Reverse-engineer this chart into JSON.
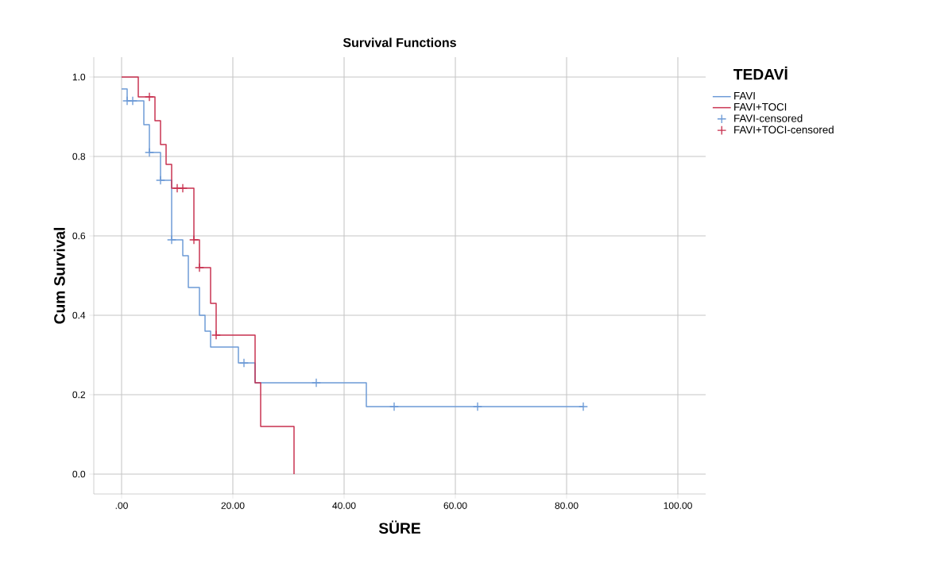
{
  "chart_data": {
    "type": "step",
    "title": "Survival Functions",
    "xlabel": "SÜRE",
    "ylabel": "Cum Survival",
    "legend_title": "TEDAVİ",
    "xlim": [
      -5,
      105
    ],
    "ylim": [
      -0.05,
      1.05
    ],
    "xticks": [
      {
        "value": 0,
        "label": ".00"
      },
      {
        "value": 20,
        "label": "20.00"
      },
      {
        "value": 40,
        "label": "40.00"
      },
      {
        "value": 60,
        "label": "60.00"
      },
      {
        "value": 80,
        "label": "80.00"
      },
      {
        "value": 100,
        "label": "100.00"
      }
    ],
    "yticks": [
      {
        "value": 0,
        "label": "0.0"
      },
      {
        "value": 0.2,
        "label": "0.2"
      },
      {
        "value": 0.4,
        "label": "0.4"
      },
      {
        "value": 0.6,
        "label": "0.6"
      },
      {
        "value": 0.8,
        "label": "0.8"
      },
      {
        "value": 1.0,
        "label": "1.0"
      }
    ],
    "grid": true,
    "legend": "top right",
    "series": [
      {
        "name": "FAVI",
        "color": "#6c9ad6",
        "x": [
          0,
          1,
          4,
          5,
          7,
          9,
          11,
          12,
          14,
          15,
          16,
          21,
          24,
          44,
          83
        ],
        "values": [
          0.97,
          0.94,
          0.88,
          0.81,
          0.74,
          0.59,
          0.55,
          0.47,
          0.4,
          0.36,
          0.32,
          0.28,
          0.23,
          0.17,
          0.17
        ]
      },
      {
        "name": "FAVI+TOCI",
        "color": "#c8314f",
        "x": [
          0,
          3,
          6,
          7,
          8,
          9,
          13,
          14,
          16,
          17,
          24,
          25,
          31
        ],
        "values": [
          1.0,
          0.95,
          0.89,
          0.83,
          0.78,
          0.72,
          0.59,
          0.52,
          0.43,
          0.35,
          0.23,
          0.12,
          0.0
        ]
      },
      {
        "name": "FAVI-censored",
        "type": "scatter",
        "marker": "cross",
        "color": "#6c9ad6",
        "x": [
          1,
          2,
          5,
          7,
          9,
          22,
          35,
          49,
          64,
          83
        ],
        "values": [
          0.94,
          0.94,
          0.81,
          0.74,
          0.59,
          0.28,
          0.23,
          0.17,
          0.17,
          0.17
        ]
      },
      {
        "name": "FAVI+TOCI-censored",
        "type": "scatter",
        "marker": "cross",
        "color": "#c8314f",
        "x": [
          5,
          10,
          11,
          13,
          14,
          17
        ],
        "values": [
          0.95,
          0.72,
          0.72,
          0.59,
          0.52,
          0.35
        ]
      }
    ]
  }
}
